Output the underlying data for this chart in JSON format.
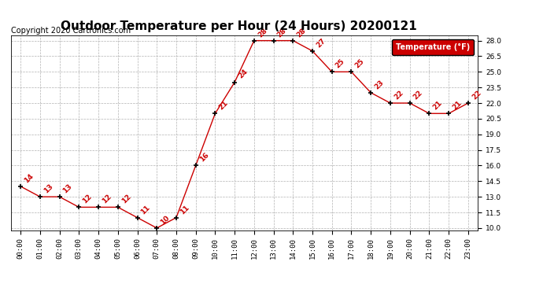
{
  "title": "Outdoor Temperature per Hour (24 Hours) 20200121",
  "copyright": "Copyright 2020 Cartronics.com",
  "hours": [
    "00:00",
    "01:00",
    "02:00",
    "03:00",
    "04:00",
    "05:00",
    "06:00",
    "07:00",
    "08:00",
    "09:00",
    "10:00",
    "11:00",
    "12:00",
    "13:00",
    "14:00",
    "15:00",
    "16:00",
    "17:00",
    "18:00",
    "19:00",
    "20:00",
    "21:00",
    "22:00",
    "23:00"
  ],
  "temps": [
    14,
    13,
    13,
    12,
    12,
    12,
    11,
    10,
    11,
    16,
    21,
    24,
    28,
    28,
    28,
    27,
    25,
    25,
    23,
    22,
    22,
    21,
    21,
    22
  ],
  "ylim_min": 10.0,
  "ylim_max": 28.0,
  "yticks": [
    10.0,
    11.5,
    13.0,
    14.5,
    16.0,
    17.5,
    19.0,
    20.5,
    22.0,
    23.5,
    25.0,
    26.5,
    28.0
  ],
  "line_color": "#cc0000",
  "marker_color": "#000000",
  "label_color": "#cc0000",
  "bg_color": "#ffffff",
  "grid_color": "#aaaaaa",
  "legend_label": "Temperature (°F)",
  "legend_bg": "#cc0000",
  "legend_text_color": "#ffffff",
  "title_fontsize": 11,
  "label_fontsize": 6.5,
  "tick_fontsize": 6.5,
  "copyright_fontsize": 7
}
